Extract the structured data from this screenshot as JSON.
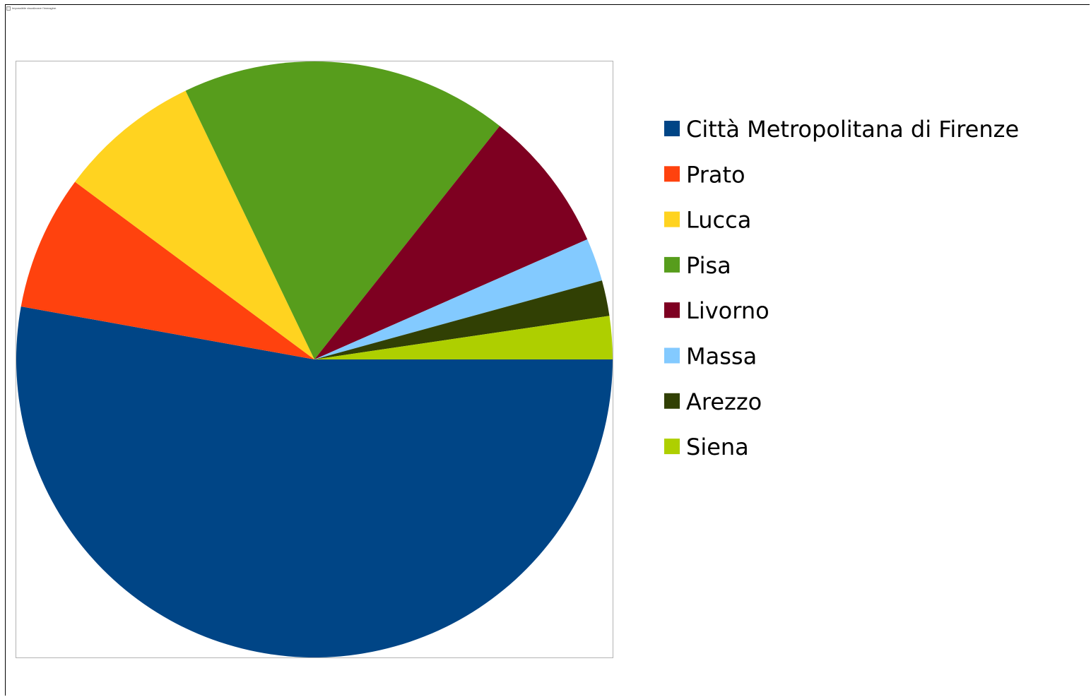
{
  "window": {
    "broken_image_text": "Impossibile visualizzare l'immagine."
  },
  "chart_data": {
    "type": "pie",
    "title": "",
    "start_angle_deg": 0,
    "direction": "counterclockwise",
    "legend_position": "right",
    "slices": [
      {
        "label": "Città Metropolitana di Firenze",
        "value": 52.0,
        "color": "#004586"
      },
      {
        "label": "Prato",
        "value": 7.2,
        "color": "#ff420e"
      },
      {
        "label": "Lucca",
        "value": 7.6,
        "color": "#ffd320"
      },
      {
        "label": "Pisa",
        "value": 17.5,
        "color": "#579d1c"
      },
      {
        "label": "Livorno",
        "value": 7.6,
        "color": "#7e0021"
      },
      {
        "label": "Massa",
        "value": 2.3,
        "color": "#83caff"
      },
      {
        "label": "Arezzo",
        "value": 1.9,
        "color": "#314004"
      },
      {
        "label": "Siena",
        "value": 2.3,
        "color": "#aecf00"
      }
    ]
  }
}
